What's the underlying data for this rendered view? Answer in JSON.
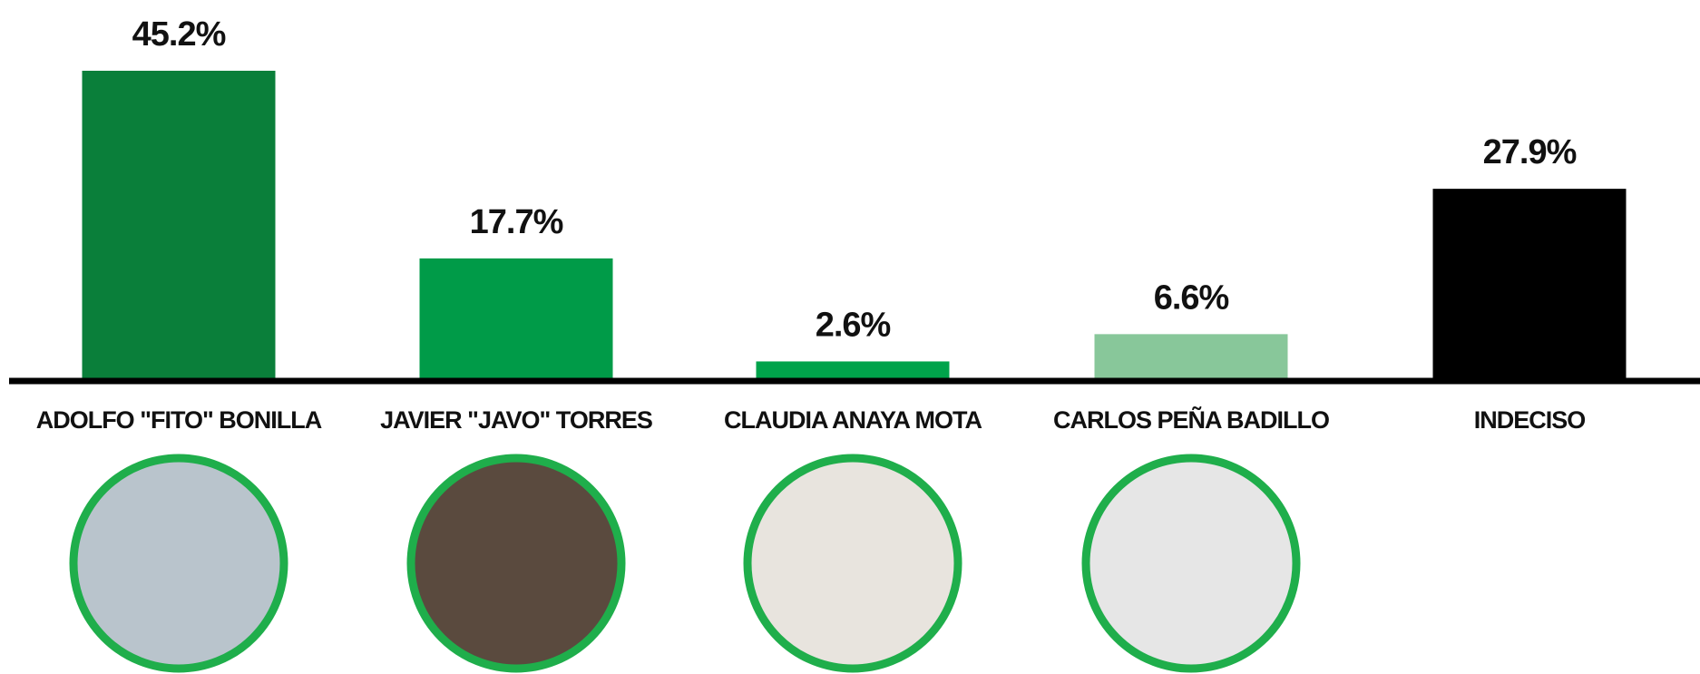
{
  "chart_data": {
    "type": "bar",
    "categories": [
      "ADOLFO \"FITO\" BONILLA",
      "JAVIER \"JAVO\" TORRES",
      "CLAUDIA ANAYA MOTA",
      "CARLOS PEÑA BADILLO",
      "INDECISO"
    ],
    "values": [
      45.2,
      17.7,
      2.6,
      6.6,
      27.9
    ],
    "value_labels": [
      "45.2%",
      "17.7%",
      "2.6%",
      "6.6%",
      "27.9%"
    ],
    "colors": [
      "#0a7f3a",
      "#009b48",
      "#00a34b",
      "#88c79a",
      "#000000"
    ]
  }
}
